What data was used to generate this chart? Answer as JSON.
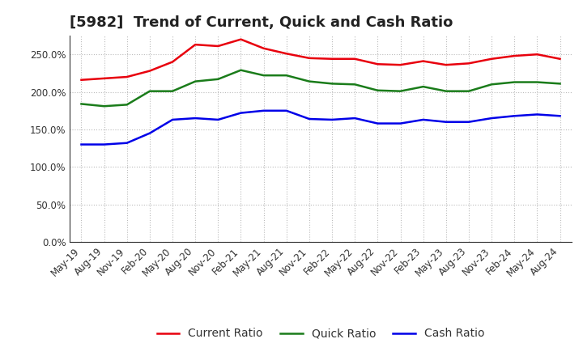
{
  "title": "[5982]  Trend of Current, Quick and Cash Ratio",
  "x_labels": [
    "May-19",
    "Aug-19",
    "Nov-19",
    "Feb-20",
    "May-20",
    "Aug-20",
    "Nov-20",
    "Feb-21",
    "May-21",
    "Aug-21",
    "Nov-21",
    "Feb-22",
    "May-22",
    "Aug-22",
    "Nov-22",
    "Feb-23",
    "May-23",
    "Aug-23",
    "Nov-23",
    "Feb-24",
    "May-24",
    "Aug-24"
  ],
  "current_ratio": [
    216,
    218,
    220,
    228,
    240,
    263,
    261,
    270,
    258,
    251,
    245,
    244,
    244,
    237,
    236,
    241,
    236,
    238,
    244,
    248,
    250,
    244
  ],
  "quick_ratio": [
    184,
    181,
    183,
    201,
    201,
    214,
    217,
    229,
    222,
    222,
    214,
    211,
    210,
    202,
    201,
    207,
    201,
    201,
    210,
    213,
    213,
    211
  ],
  "cash_ratio": [
    130,
    130,
    132,
    145,
    163,
    165,
    163,
    172,
    175,
    175,
    164,
    163,
    165,
    158,
    158,
    163,
    160,
    160,
    165,
    168,
    170,
    168
  ],
  "current_color": "#e8000d",
  "quick_color": "#1a7c1a",
  "cash_color": "#0000e8",
  "ylim": [
    0,
    275
  ],
  "yticks": [
    0,
    50,
    100,
    150,
    200,
    250
  ],
  "background_color": "#ffffff",
  "plot_bg_color": "#ffffff",
  "grid_color": "#bbbbbb",
  "legend_labels": [
    "Current Ratio",
    "Quick Ratio",
    "Cash Ratio"
  ],
  "title_fontsize": 13,
  "axis_fontsize": 8.5,
  "legend_fontsize": 10,
  "line_width": 1.8
}
